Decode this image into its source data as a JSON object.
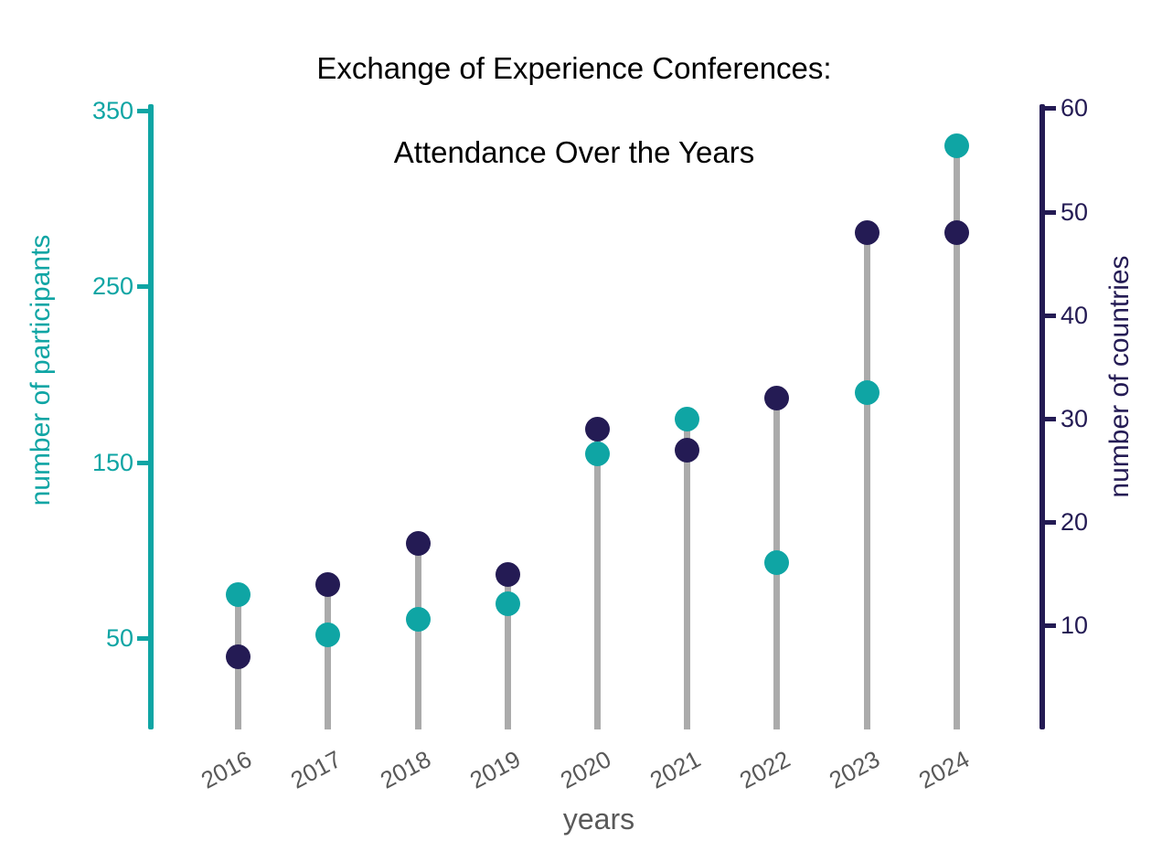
{
  "title": {
    "line1": "Exchange of Experience Conferences:",
    "line2": "Attendance Over the Years"
  },
  "colors": {
    "participants_teal": "#0FA5A4",
    "countries_navy": "#241B54",
    "stem_gray": "#ABABAB",
    "xtick_gray": "#595959",
    "title_black": "#000000"
  },
  "chart_data": {
    "type": "lollipop-dual-axis",
    "title": "Exchange of Experience Conferences: Attendance Over the Years",
    "xlabel": "years",
    "categories": [
      "2016",
      "2017",
      "2018",
      "2019",
      "2020",
      "2021",
      "2022",
      "2023",
      "2024"
    ],
    "series": [
      {
        "name": "number of participants",
        "axis": "left",
        "color": "#0FA5A4",
        "values": [
          75,
          52,
          61,
          70,
          155,
          175,
          93,
          190,
          330
        ]
      },
      {
        "name": "number of countries",
        "axis": "right",
        "color": "#241B54",
        "values": [
          7,
          14,
          18,
          15,
          29,
          27,
          32,
          48,
          48
        ]
      }
    ],
    "axes": {
      "left": {
        "label": "number of participants",
        "color": "#0FA5A4",
        "ticks": [
          350,
          250,
          150,
          50
        ],
        "range": [
          0,
          355
        ]
      },
      "right": {
        "label": "number of countries",
        "color": "#241B54",
        "ticks": [
          60,
          50,
          40,
          30,
          20,
          10
        ],
        "range": [
          0,
          61
        ]
      },
      "x": {
        "label": "years",
        "color": "#595959"
      }
    },
    "legend": "none",
    "grid": false,
    "marker_style": "filled-circle-on-gray-stem"
  }
}
